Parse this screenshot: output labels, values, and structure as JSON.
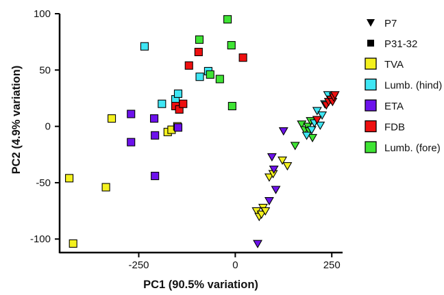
{
  "chart_data": {
    "type": "scatter",
    "xlabel": "PC1 (90.5% variation)",
    "ylabel": "PC2 (4.9% variation)",
    "xlim": [
      -455,
      278
    ],
    "ylim": [
      -112,
      100
    ],
    "xticks": [
      -250,
      0,
      250
    ],
    "xtick_labels": [
      "-250",
      "0",
      "250"
    ],
    "yticks": [
      -100,
      -50,
      0,
      50,
      100
    ],
    "ytick_labels": [
      "-100",
      "-50",
      "0",
      "50",
      "100"
    ],
    "grid": false,
    "legend_position": "right",
    "legend_markers": [
      {
        "label": "P7",
        "marker": "triangle-down"
      },
      {
        "label": "P31-32",
        "marker": "square"
      }
    ],
    "legend_groups": [
      {
        "key": "TVA",
        "label": "TVA",
        "color": "#f4f11f"
      },
      {
        "key": "Lumb_hind",
        "label": "Lumb. (hind)",
        "color": "#3fe6f4"
      },
      {
        "key": "ETA",
        "label": "ETA",
        "color": "#6d12ec"
      },
      {
        "key": "FDB",
        "label": "FDB",
        "color": "#ee1010"
      },
      {
        "key": "Lumb_fore",
        "label": "Lumb. (fore)",
        "color": "#3fe434"
      }
    ],
    "series": [
      {
        "group": "TVA",
        "marker": "square",
        "points": [
          [
            -430,
            -46
          ],
          [
            -420,
            -104
          ],
          [
            -335,
            -54
          ],
          [
            -320,
            7
          ],
          [
            -175,
            -5
          ],
          [
            -165,
            -3
          ],
          [
            -150,
            0
          ]
        ]
      },
      {
        "group": "Lumb_hind",
        "marker": "square",
        "points": [
          [
            -235,
            71
          ],
          [
            -190,
            20
          ],
          [
            -155,
            24
          ],
          [
            -148,
            29
          ],
          [
            -92,
            44
          ],
          [
            -70,
            49
          ]
        ]
      },
      {
        "group": "ETA",
        "marker": "square",
        "points": [
          [
            -270,
            11
          ],
          [
            -270,
            -14
          ],
          [
            -210,
            7
          ],
          [
            -208,
            -8
          ],
          [
            -208,
            -44
          ],
          [
            -148,
            -1
          ]
        ]
      },
      {
        "group": "FDB",
        "marker": "square",
        "points": [
          [
            -155,
            18
          ],
          [
            -145,
            15
          ],
          [
            -135,
            20
          ],
          [
            -120,
            54
          ],
          [
            -95,
            66
          ],
          [
            20,
            61
          ]
        ]
      },
      {
        "group": "Lumb_fore",
        "marker": "square",
        "points": [
          [
            -93,
            77
          ],
          [
            -65,
            46
          ],
          [
            -40,
            42
          ],
          [
            -20,
            95
          ],
          [
            -10,
            72
          ],
          [
            -8,
            18
          ]
        ]
      },
      {
        "group": "TVA",
        "marker": "triangle-down",
        "points": [
          [
            55,
            -75
          ],
          [
            62,
            -80
          ],
          [
            68,
            -78
          ],
          [
            72,
            -72
          ],
          [
            78,
            -75
          ],
          [
            88,
            -45
          ],
          [
            98,
            -42
          ],
          [
            122,
            -30
          ],
          [
            135,
            -35
          ]
        ]
      },
      {
        "group": "ETA",
        "marker": "triangle-down",
        "points": [
          [
            58,
            -104
          ],
          [
            88,
            -66
          ],
          [
            95,
            -27
          ],
          [
            100,
            -38
          ],
          [
            105,
            -56
          ],
          [
            125,
            -4
          ]
        ]
      },
      {
        "group": "Lumb_fore",
        "marker": "triangle-down",
        "points": [
          [
            155,
            -17
          ],
          [
            172,
            2
          ],
          [
            180,
            -3
          ],
          [
            188,
            0
          ],
          [
            192,
            -4
          ],
          [
            200,
            -10
          ],
          [
            195,
            5
          ]
        ]
      },
      {
        "group": "Lumb_hind",
        "marker": "triangle-down",
        "points": [
          [
            185,
            -8
          ],
          [
            198,
            -3
          ],
          [
            205,
            3
          ],
          [
            212,
            14
          ],
          [
            220,
            1
          ],
          [
            225,
            10
          ],
          [
            232,
            20
          ],
          [
            240,
            28
          ],
          [
            248,
            24
          ],
          [
            255,
            27
          ]
        ]
      },
      {
        "group": "FDB",
        "marker": "triangle-down",
        "points": [
          [
            212,
            6
          ],
          [
            236,
            19
          ],
          [
            242,
            22
          ],
          [
            248,
            24
          ],
          [
            252,
            22
          ],
          [
            255,
            26
          ],
          [
            258,
            28
          ]
        ]
      }
    ]
  }
}
